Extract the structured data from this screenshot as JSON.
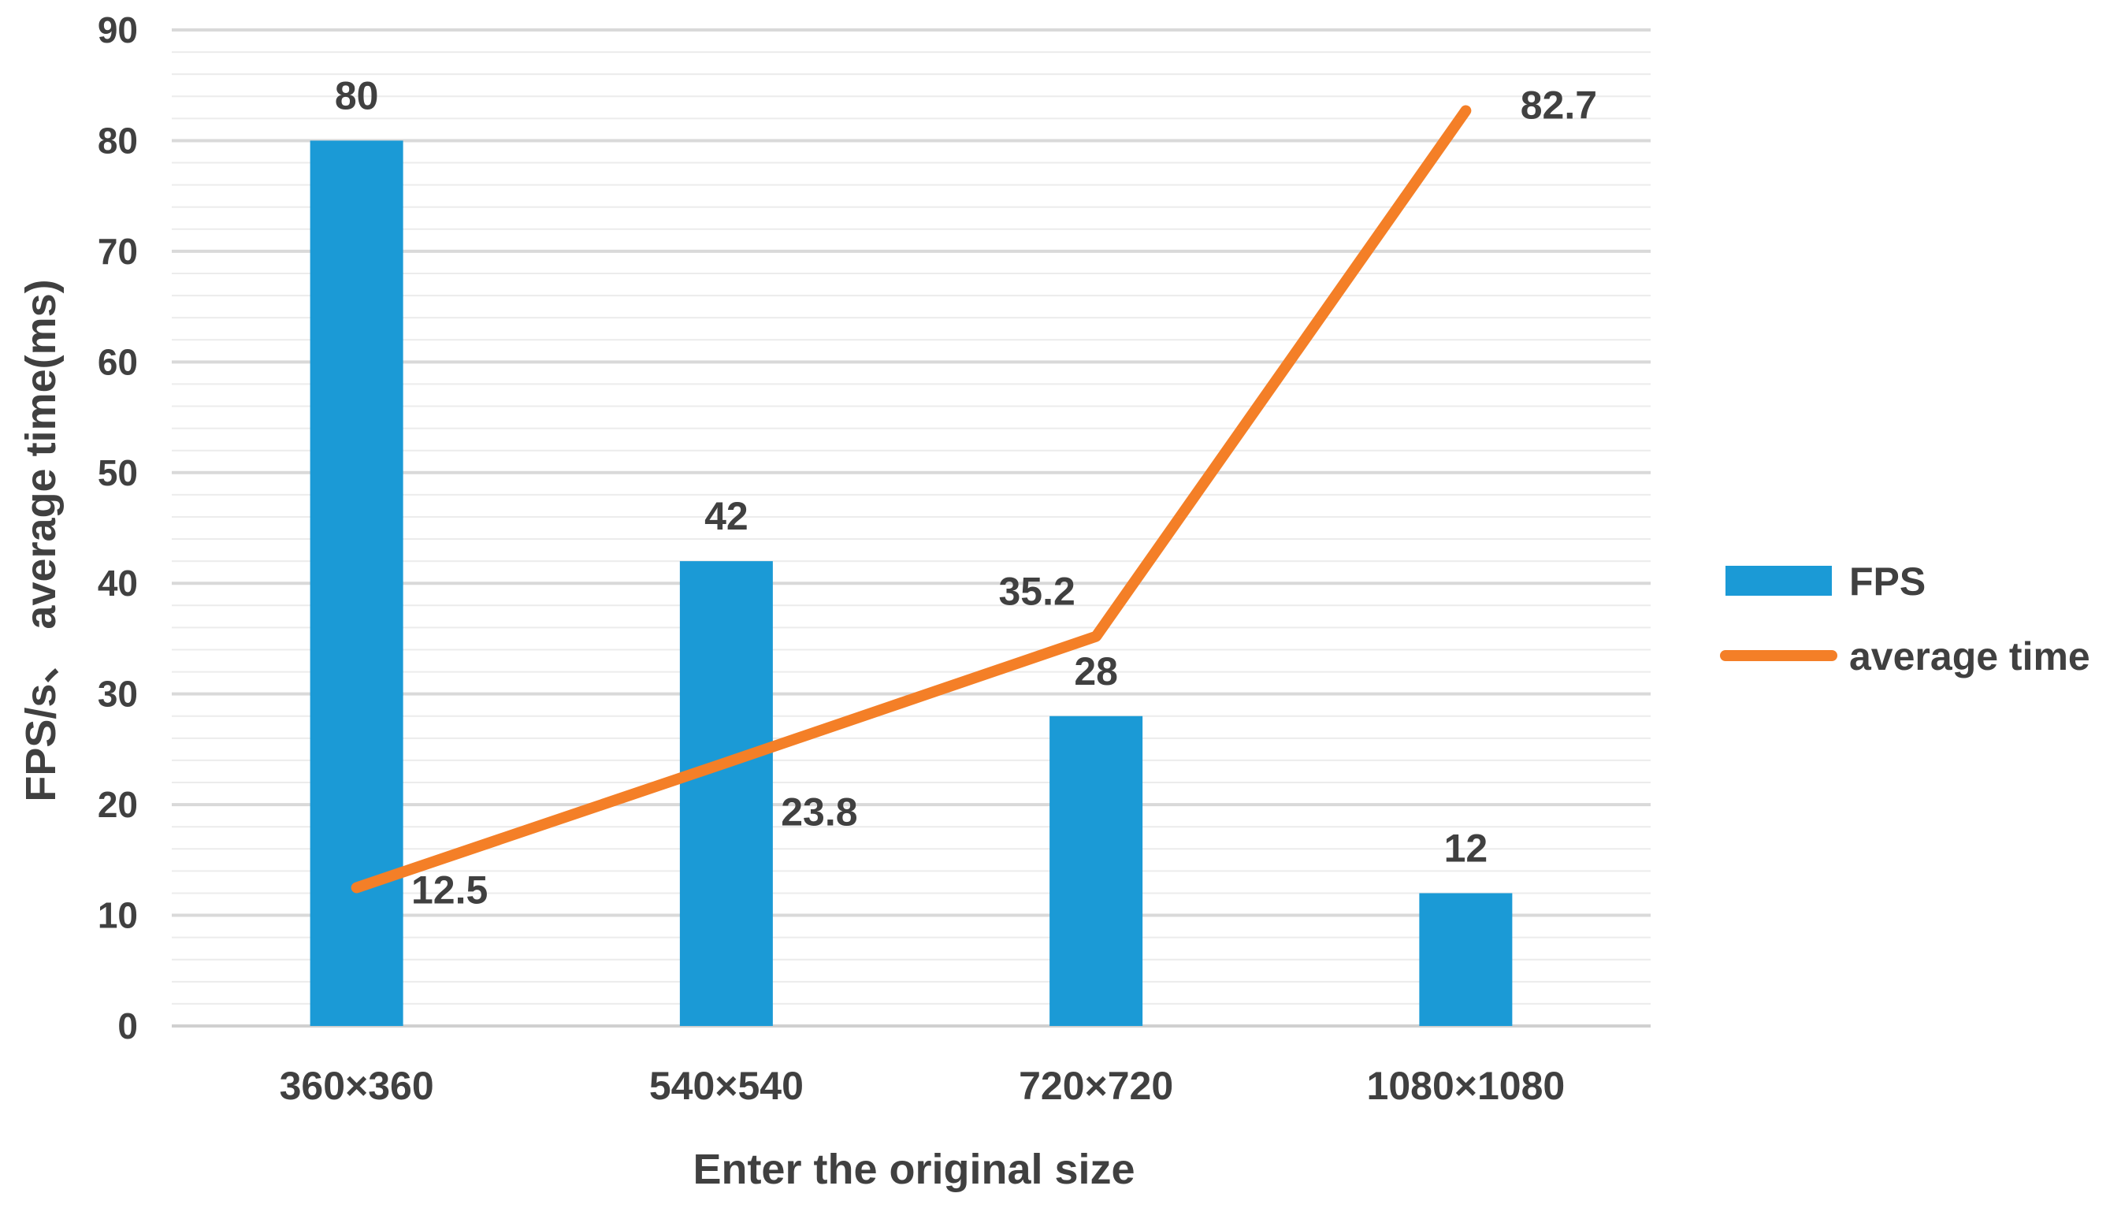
{
  "chart_data": {
    "type": "bar",
    "categories": [
      "360×360",
      "540×540",
      "720×720",
      "1080×1080"
    ],
    "series": [
      {
        "name": "FPS",
        "type": "bar",
        "values": [
          80,
          42,
          28,
          12
        ],
        "data_labels": [
          "80",
          "42",
          "28",
          "12"
        ]
      },
      {
        "name": "average time",
        "type": "line",
        "values": [
          12.5,
          23.8,
          35.2,
          82.7
        ],
        "data_labels": [
          "12.5",
          "23.8",
          "35.2",
          "82.7"
        ]
      }
    ],
    "title": "",
    "xlabel": "Enter the original size",
    "ylabel": "FPS/s、 average time(ms)",
    "ylim": [
      0,
      90
    ],
    "yticks": [
      0,
      10,
      20,
      30,
      40,
      50,
      60,
      70,
      80,
      90
    ],
    "ytick_labels": [
      "0",
      "10",
      "20",
      "30",
      "40",
      "50",
      "60",
      "70",
      "80",
      "90"
    ],
    "grid": true,
    "minor_grid": true,
    "legend": "right",
    "colors": {
      "FPS": "#1b9ad6",
      "average time": "#f47f27"
    }
  }
}
